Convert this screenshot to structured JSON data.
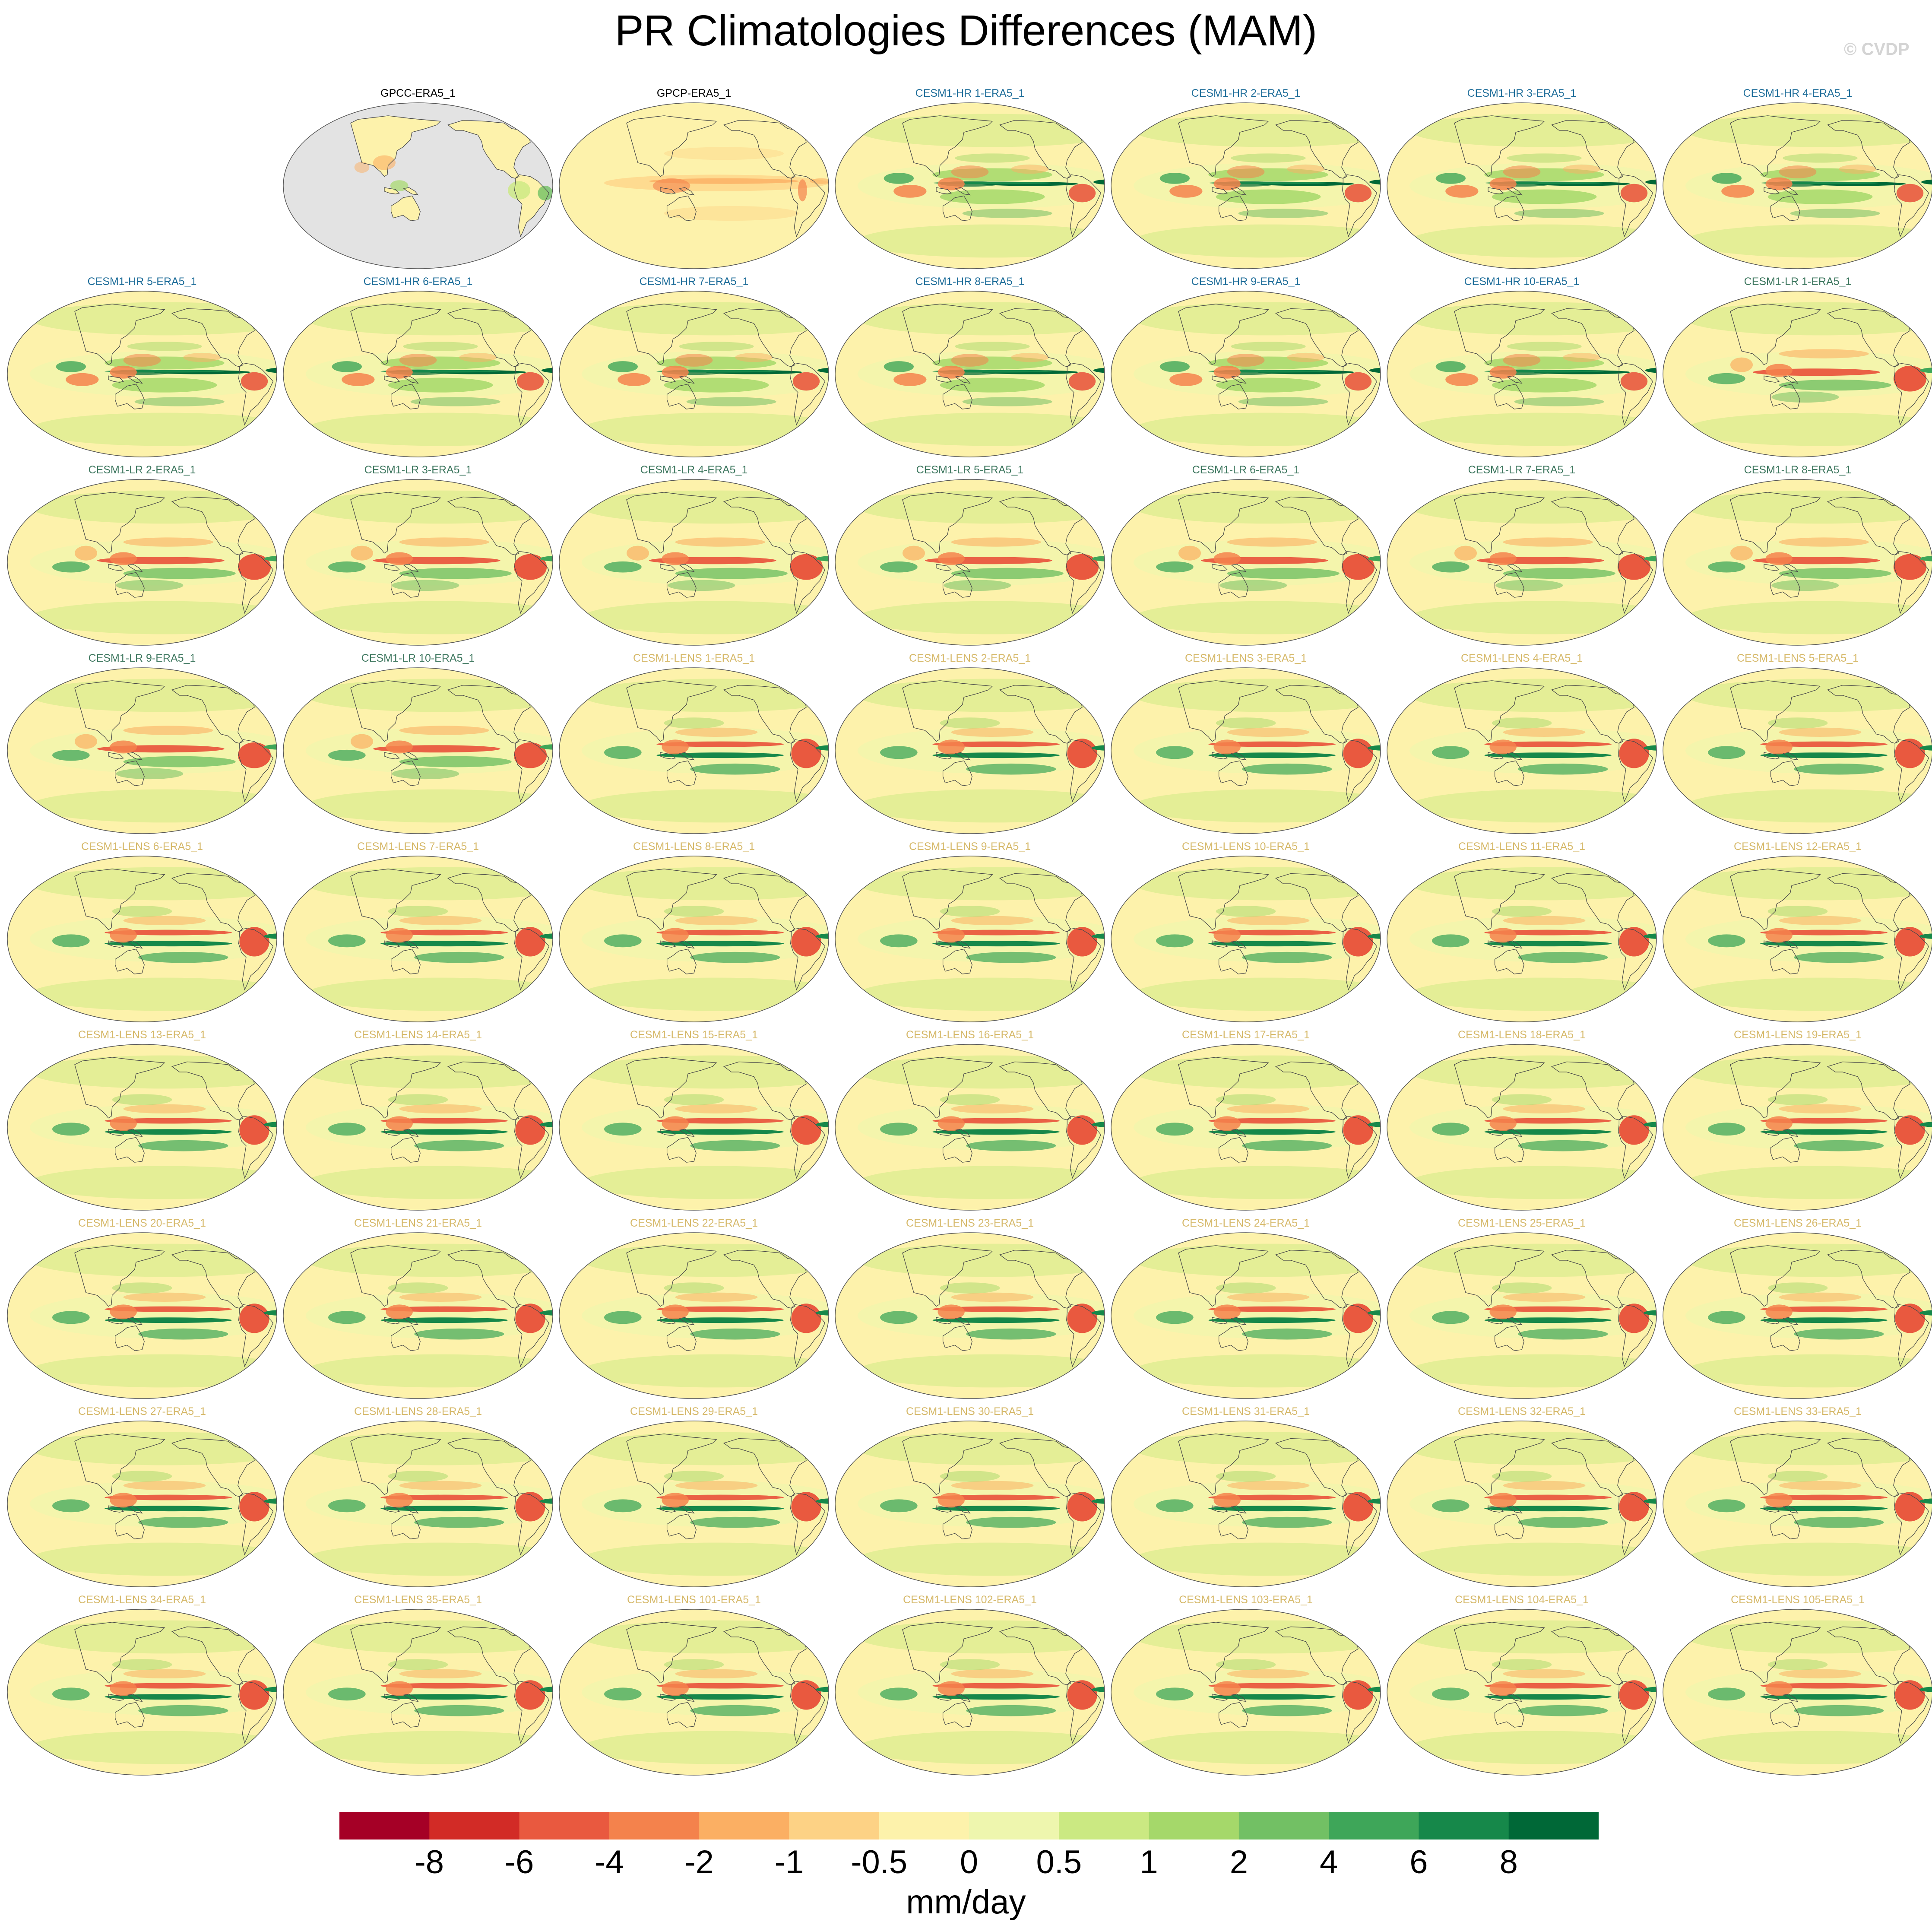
{
  "title": "PR Climatologies Differences (MAM)",
  "copyright": "© CVDP",
  "colors": {
    "obs_label": "#000000",
    "hr_label": "#1f6e9a",
    "lr_label": "#3f7860",
    "lens_label": "#d6b96a",
    "ocean_obs": "#e3e3e3",
    "coastline": "#4a4a4a"
  },
  "panels": [
    {
      "label": "GPCC-ERA5_1",
      "group": "obs",
      "style": "land"
    },
    {
      "label": "GPCP-ERA5_1",
      "group": "obs",
      "style": "gpcp"
    },
    {
      "label": "CESM1-HR 1-ERA5_1",
      "group": "hr"
    },
    {
      "label": "CESM1-HR 2-ERA5_1",
      "group": "hr"
    },
    {
      "label": "CESM1-HR 3-ERA5_1",
      "group": "hr"
    },
    {
      "label": "CESM1-HR 4-ERA5_1",
      "group": "hr"
    },
    {
      "label": "CESM1-HR 5-ERA5_1",
      "group": "hr"
    },
    {
      "label": "CESM1-HR 6-ERA5_1",
      "group": "hr"
    },
    {
      "label": "CESM1-HR 7-ERA5_1",
      "group": "hr"
    },
    {
      "label": "CESM1-HR 8-ERA5_1",
      "group": "hr"
    },
    {
      "label": "CESM1-HR 9-ERA5_1",
      "group": "hr"
    },
    {
      "label": "CESM1-HR 10-ERA5_1",
      "group": "hr"
    },
    {
      "label": "CESM1-LR 1-ERA5_1",
      "group": "lr"
    },
    {
      "label": "CESM1-LR 2-ERA5_1",
      "group": "lr"
    },
    {
      "label": "CESM1-LR 3-ERA5_1",
      "group": "lr"
    },
    {
      "label": "CESM1-LR 4-ERA5_1",
      "group": "lr"
    },
    {
      "label": "CESM1-LR 5-ERA5_1",
      "group": "lr"
    },
    {
      "label": "CESM1-LR 6-ERA5_1",
      "group": "lr"
    },
    {
      "label": "CESM1-LR 7-ERA5_1",
      "group": "lr"
    },
    {
      "label": "CESM1-LR 8-ERA5_1",
      "group": "lr"
    },
    {
      "label": "CESM1-LR 9-ERA5_1",
      "group": "lr"
    },
    {
      "label": "CESM1-LR 10-ERA5_1",
      "group": "lr"
    },
    {
      "label": "CESM1-LENS 1-ERA5_1",
      "group": "lens"
    },
    {
      "label": "CESM1-LENS 2-ERA5_1",
      "group": "lens"
    },
    {
      "label": "CESM1-LENS 3-ERA5_1",
      "group": "lens"
    },
    {
      "label": "CESM1-LENS 4-ERA5_1",
      "group": "lens"
    },
    {
      "label": "CESM1-LENS 5-ERA5_1",
      "group": "lens"
    },
    {
      "label": "CESM1-LENS 6-ERA5_1",
      "group": "lens"
    },
    {
      "label": "CESM1-LENS 7-ERA5_1",
      "group": "lens"
    },
    {
      "label": "CESM1-LENS 8-ERA5_1",
      "group": "lens"
    },
    {
      "label": "CESM1-LENS 9-ERA5_1",
      "group": "lens"
    },
    {
      "label": "CESM1-LENS 10-ERA5_1",
      "group": "lens"
    },
    {
      "label": "CESM1-LENS 11-ERA5_1",
      "group": "lens"
    },
    {
      "label": "CESM1-LENS 12-ERA5_1",
      "group": "lens"
    },
    {
      "label": "CESM1-LENS 13-ERA5_1",
      "group": "lens"
    },
    {
      "label": "CESM1-LENS 14-ERA5_1",
      "group": "lens"
    },
    {
      "label": "CESM1-LENS 15-ERA5_1",
      "group": "lens"
    },
    {
      "label": "CESM1-LENS 16-ERA5_1",
      "group": "lens"
    },
    {
      "label": "CESM1-LENS 17-ERA5_1",
      "group": "lens"
    },
    {
      "label": "CESM1-LENS 18-ERA5_1",
      "group": "lens"
    },
    {
      "label": "CESM1-LENS 19-ERA5_1",
      "group": "lens"
    },
    {
      "label": "CESM1-LENS 20-ERA5_1",
      "group": "lens"
    },
    {
      "label": "CESM1-LENS 21-ERA5_1",
      "group": "lens"
    },
    {
      "label": "CESM1-LENS 22-ERA5_1",
      "group": "lens"
    },
    {
      "label": "CESM1-LENS 23-ERA5_1",
      "group": "lens"
    },
    {
      "label": "CESM1-LENS 24-ERA5_1",
      "group": "lens"
    },
    {
      "label": "CESM1-LENS 25-ERA5_1",
      "group": "lens"
    },
    {
      "label": "CESM1-LENS 26-ERA5_1",
      "group": "lens"
    },
    {
      "label": "CESM1-LENS 27-ERA5_1",
      "group": "lens"
    },
    {
      "label": "CESM1-LENS 28-ERA5_1",
      "group": "lens"
    },
    {
      "label": "CESM1-LENS 29-ERA5_1",
      "group": "lens"
    },
    {
      "label": "CESM1-LENS 30-ERA5_1",
      "group": "lens"
    },
    {
      "label": "CESM1-LENS 31-ERA5_1",
      "group": "lens"
    },
    {
      "label": "CESM1-LENS 32-ERA5_1",
      "group": "lens"
    },
    {
      "label": "CESM1-LENS 33-ERA5_1",
      "group": "lens"
    },
    {
      "label": "CESM1-LENS 34-ERA5_1",
      "group": "lens"
    },
    {
      "label": "CESM1-LENS 35-ERA5_1",
      "group": "lens"
    },
    {
      "label": "CESM1-LENS 101-ERA5_1",
      "group": "lens"
    },
    {
      "label": "CESM1-LENS 102-ERA5_1",
      "group": "lens"
    },
    {
      "label": "CESM1-LENS 103-ERA5_1",
      "group": "lens"
    },
    {
      "label": "CESM1-LENS 104-ERA5_1",
      "group": "lens"
    },
    {
      "label": "CESM1-LENS 105-ERA5_1",
      "group": "lens"
    }
  ],
  "colorbar": {
    "units": "mm/day",
    "colors": [
      "#a50026",
      "#d22b26",
      "#e9593f",
      "#f4824c",
      "#fbaf63",
      "#fdd285",
      "#fdf2ab",
      "#eef6ae",
      "#cbe982",
      "#a5d86a",
      "#72c064",
      "#3ea659",
      "#16884a",
      "#006837"
    ],
    "tick_labels": [
      "-8",
      "-6",
      "-4",
      "-2",
      "-1",
      "-0.5",
      "0",
      "0.5",
      "1",
      "2",
      "4",
      "6",
      "8"
    ]
  }
}
